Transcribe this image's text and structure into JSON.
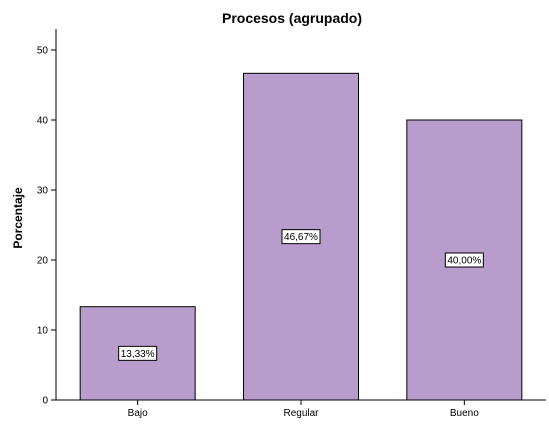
{
  "chart_data": {
    "type": "bar",
    "title": "Procesos (agrupado)",
    "xlabel": "",
    "ylabel": "Porcentaje",
    "categories": [
      "Bajo",
      "Regular",
      "Bueno"
    ],
    "values": [
      13.33,
      46.67,
      40.0
    ],
    "data_labels": [
      "13,33%",
      "46,67%",
      "40,00%"
    ],
    "yticks": [
      0,
      10,
      20,
      30,
      40,
      50
    ],
    "ylim": [
      0,
      53
    ],
    "grid": false,
    "legend": "none",
    "bar_color": "#b89ccb",
    "bar_edge_color": "#000000"
  }
}
